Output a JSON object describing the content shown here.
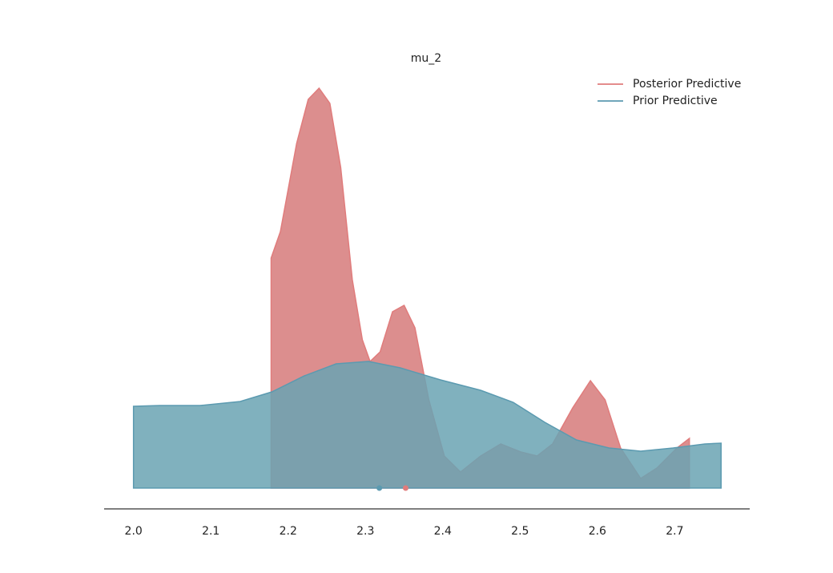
{
  "chart_data": {
    "type": "area",
    "title": "mu_2",
    "xlim": [
      1.962,
      2.797
    ],
    "ylim": [
      0,
      5.3
    ],
    "xticks": [
      {
        "value": 2,
        "label": "2.0"
      },
      2.1,
      2.2,
      2.3,
      2.4,
      2.5,
      2.6,
      2.7
    ],
    "legend": "upper right",
    "series": [
      {
        "name": "Posterior Predictive",
        "color": "#dc8e8e",
        "line_color": "#e07c7c",
        "mean": 2.352,
        "x": [
          2.178,
          2.19,
          2.211,
          2.226,
          2.24,
          2.254,
          2.268,
          2.283,
          2.296,
          2.306,
          2.319,
          2.335,
          2.35,
          2.364,
          2.382,
          2.402,
          2.423,
          2.449,
          2.475,
          2.501,
          2.522,
          2.542,
          2.568,
          2.591,
          2.61,
          2.63,
          2.656,
          2.677,
          2.703,
          2.719
        ],
        "values": [
          2.87,
          3.2,
          4.3,
          4.85,
          4.99,
          4.8,
          4.0,
          2.6,
          1.85,
          1.58,
          1.7,
          2.2,
          2.28,
          2.0,
          1.1,
          0.4,
          0.2,
          0.4,
          0.55,
          0.45,
          0.4,
          0.55,
          1.0,
          1.34,
          1.1,
          0.5,
          0.12,
          0.25,
          0.5,
          0.62
        ]
      },
      {
        "name": "Prior Predictive",
        "color": "#6aa3b3",
        "line_color": "#5b9ab0",
        "mean": 2.318,
        "x": [
          2.0,
          2.034,
          2.086,
          2.138,
          2.179,
          2.221,
          2.262,
          2.304,
          2.345,
          2.397,
          2.449,
          2.491,
          2.532,
          2.573,
          2.615,
          2.656,
          2.698,
          2.739,
          2.76
        ],
        "values": [
          1.02,
          1.03,
          1.03,
          1.08,
          1.2,
          1.4,
          1.55,
          1.58,
          1.5,
          1.35,
          1.22,
          1.07,
          0.82,
          0.6,
          0.5,
          0.46,
          0.5,
          0.55,
          0.56
        ]
      }
    ]
  }
}
